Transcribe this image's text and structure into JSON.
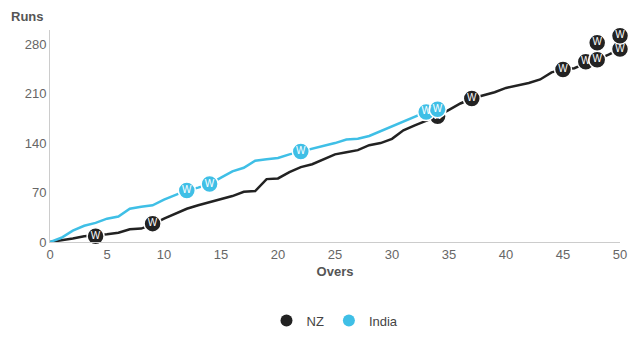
{
  "chart_data": {
    "type": "line",
    "x_label": "Overs",
    "y_label": "Runs",
    "xlim": [
      0,
      50
    ],
    "xticks": [
      0,
      5,
      10,
      15,
      20,
      25,
      30,
      35,
      40,
      45,
      50
    ],
    "ylim": [
      0,
      300
    ],
    "yticks": [
      0,
      70,
      140,
      210,
      280
    ],
    "grid": false,
    "legend": "bottom",
    "marker": "circle",
    "wicket_label": "W",
    "series": [
      {
        "name": "NZ",
        "color": "#222222",
        "x": [
          0,
          1,
          2,
          3,
          4,
          5,
          6,
          7,
          8,
          9,
          10,
          11,
          12,
          13,
          14,
          15,
          16,
          17,
          18,
          19,
          20,
          21,
          22,
          23,
          24,
          25,
          26,
          27,
          28,
          29,
          30,
          31,
          32,
          33,
          34,
          35,
          36,
          37,
          38,
          39,
          40,
          41,
          42,
          43,
          44,
          45,
          46,
          47,
          48,
          49,
          50
        ],
        "values": [
          0,
          2,
          5,
          8,
          9,
          11,
          13,
          18,
          19,
          25,
          33,
          40,
          47,
          52,
          56,
          61,
          65,
          71,
          72,
          89,
          90,
          99,
          106,
          110,
          117,
          124,
          127,
          130,
          137,
          140,
          146,
          158,
          165,
          171,
          178,
          187,
          196,
          203,
          207,
          212,
          218,
          221,
          225,
          230,
          240,
          244,
          246,
          253,
          258,
          265,
          273
        ],
        "wickets": {
          "x": [
            4,
            9,
            34,
            37,
            45,
            47,
            48,
            48,
            50,
            50
          ],
          "values": [
            8,
            26,
            178,
            203,
            244,
            255,
            258,
            282,
            273,
            292
          ]
        }
      },
      {
        "name": "India",
        "color": "#3fbfe6",
        "x": [
          0,
          1,
          2,
          3,
          4,
          5,
          6,
          7,
          8,
          9,
          10,
          11,
          12,
          13,
          14,
          15,
          16,
          17,
          18,
          19,
          20,
          21,
          22,
          23,
          24,
          25,
          26,
          27,
          28,
          29,
          30,
          31,
          32,
          33,
          34
        ],
        "values": [
          0,
          6,
          16,
          23,
          27,
          33,
          36,
          47,
          50,
          52,
          60,
          67,
          73,
          77,
          82,
          91,
          100,
          105,
          115,
          117,
          119,
          124,
          128,
          131,
          136,
          140,
          145,
          146,
          150,
          157,
          164,
          170,
          178,
          184,
          191
        ],
        "wickets": {
          "x": [
            12,
            14,
            22,
            33,
            34
          ],
          "values": [
            73,
            82,
            128,
            184,
            188
          ]
        }
      }
    ]
  }
}
